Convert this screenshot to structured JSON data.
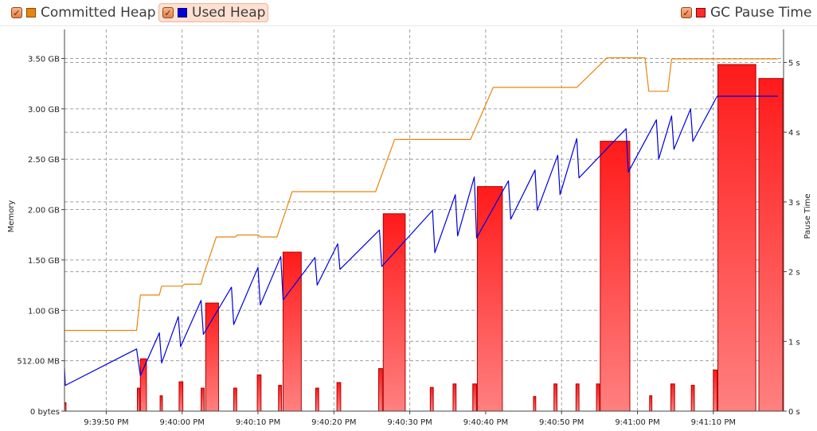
{
  "legend": {
    "committed_label": "Committed Heap",
    "used_label": "Used Heap",
    "gc_label": "GC Pause Time",
    "committed_color": "#e8850c",
    "used_color": "#0000dd",
    "gc_color": "#ff2a2a",
    "checkbox_glyph": "✓"
  },
  "chart_data": {
    "type": "line",
    "ylabel": "Memory",
    "y2label": "Pause Time",
    "grid": true,
    "legend_placement": "top",
    "x_range": [
      0,
      94
    ],
    "y_range_mb": [
      0,
      3584
    ],
    "y2_range_s": [
      0,
      5
    ],
    "x_ticks": [
      {
        "t": 5.5,
        "label": "9:39:50 PM"
      },
      {
        "t": 15.5,
        "label": "9:40:00 PM"
      },
      {
        "t": 25.5,
        "label": "9:40:10 PM"
      },
      {
        "t": 35.5,
        "label": "9:40:20 PM"
      },
      {
        "t": 45.5,
        "label": "9:40:30 PM"
      },
      {
        "t": 55.5,
        "label": "9:40:40 PM"
      },
      {
        "t": 65.5,
        "label": "9:40:50 PM"
      },
      {
        "t": 75.5,
        "label": "9:41:00 PM"
      },
      {
        "t": 85.5,
        "label": "9:41:10 PM"
      }
    ],
    "y_ticks": [
      {
        "v": 0,
        "label": "0 bytes"
      },
      {
        "v": 512,
        "label": "512.00 MB"
      },
      {
        "v": 1024,
        "label": "1.00 GB"
      },
      {
        "v": 1536,
        "label": "1.50 GB"
      },
      {
        "v": 2048,
        "label": "2.00 GB"
      },
      {
        "v": 2560,
        "label": "2.50 GB"
      },
      {
        "v": 3072,
        "label": "3.00 GB"
      },
      {
        "v": 3584,
        "label": "3.50 GB"
      }
    ],
    "y2_ticks": [
      {
        "v": 0,
        "label": "0 s"
      },
      {
        "v": 1,
        "label": "1 s"
      },
      {
        "v": 2,
        "label": "2 s"
      },
      {
        "v": 3,
        "label": "3 s"
      },
      {
        "v": 4,
        "label": "4 s"
      },
      {
        "v": 5,
        "label": "5 s"
      }
    ],
    "series": [
      {
        "name": "Committed Heap",
        "points": [
          [
            0,
            820
          ],
          [
            9.5,
            820
          ],
          [
            10,
            1180
          ],
          [
            12.5,
            1180
          ],
          [
            12.8,
            1270
          ],
          [
            15.5,
            1270
          ],
          [
            15.8,
            1290
          ],
          [
            18,
            1290
          ],
          [
            18.3,
            1380
          ],
          [
            20,
            1770
          ],
          [
            22.5,
            1770
          ],
          [
            22.8,
            1790
          ],
          [
            25.5,
            1790
          ],
          [
            25.8,
            1770
          ],
          [
            28,
            1770
          ],
          [
            30,
            2230
          ],
          [
            41,
            2230
          ],
          [
            43.5,
            2760
          ],
          [
            53.5,
            2760
          ],
          [
            56.5,
            3290
          ],
          [
            67.5,
            3290
          ],
          [
            71.5,
            3590
          ],
          [
            76.5,
            3590
          ],
          [
            77,
            3250
          ],
          [
            79.5,
            3250
          ],
          [
            80,
            3580
          ],
          [
            94,
            3580
          ]
        ]
      },
      {
        "name": "Used Heap",
        "points": [
          [
            0,
            440
          ],
          [
            0.1,
            262
          ],
          [
            9.5,
            632
          ],
          [
            10,
            360
          ],
          [
            12.5,
            795
          ],
          [
            12.8,
            490
          ],
          [
            15,
            960
          ],
          [
            15.3,
            655
          ],
          [
            18,
            1125
          ],
          [
            18.3,
            780
          ],
          [
            22,
            1260
          ],
          [
            22.3,
            880
          ],
          [
            25.5,
            1460
          ],
          [
            25.8,
            1080
          ],
          [
            28.5,
            1570
          ],
          [
            28.8,
            1130
          ],
          [
            33,
            1560
          ],
          [
            33.3,
            1280
          ],
          [
            36,
            1700
          ],
          [
            36.3,
            1440
          ],
          [
            41.5,
            1840
          ],
          [
            41.8,
            1470
          ],
          [
            48.5,
            2040
          ],
          [
            48.8,
            1610
          ],
          [
            51.5,
            2200
          ],
          [
            51.8,
            1780
          ],
          [
            54,
            2380
          ],
          [
            54.3,
            1760
          ],
          [
            58.5,
            2340
          ],
          [
            58.8,
            1950
          ],
          [
            62,
            2450
          ],
          [
            62.3,
            2040
          ],
          [
            65,
            2600
          ],
          [
            65.3,
            2200
          ],
          [
            67.5,
            2770
          ],
          [
            67.8,
            2370
          ],
          [
            74,
            2870
          ],
          [
            74.3,
            2430
          ],
          [
            78,
            2960
          ],
          [
            78.3,
            2560
          ],
          [
            80,
            3000
          ],
          [
            80.3,
            2660
          ],
          [
            82.5,
            3070
          ],
          [
            82.8,
            2740
          ],
          [
            86,
            3200
          ],
          [
            94,
            3200
          ]
        ]
      }
    ],
    "gc_pause_bars_s": [
      {
        "t0": 0,
        "t1": 0.2,
        "v": 0.12
      },
      {
        "t0": 9.6,
        "t1": 9.9,
        "v": 0.33
      },
      {
        "t0": 10,
        "t1": 10.8,
        "v": 0.75
      },
      {
        "t0": 12.6,
        "t1": 12.9,
        "v": 0.22
      },
      {
        "t0": 15.1,
        "t1": 15.6,
        "v": 0.42
      },
      {
        "t0": 18,
        "t1": 18.4,
        "v": 0.33
      },
      {
        "t0": 18.6,
        "t1": 20.3,
        "v": 1.55
      },
      {
        "t0": 22.3,
        "t1": 22.7,
        "v": 0.33
      },
      {
        "t0": 25.4,
        "t1": 25.9,
        "v": 0.52
      },
      {
        "t0": 28.2,
        "t1": 28.6,
        "v": 0.37
      },
      {
        "t0": 28.8,
        "t1": 31.2,
        "v": 2.28
      },
      {
        "t0": 33.1,
        "t1": 33.5,
        "v": 0.33
      },
      {
        "t0": 35.9,
        "t1": 36.4,
        "v": 0.41
      },
      {
        "t0": 41.4,
        "t1": 41.9,
        "v": 0.61
      },
      {
        "t0": 42,
        "t1": 44.9,
        "v": 2.83
      },
      {
        "t0": 48.2,
        "t1": 48.6,
        "v": 0.34
      },
      {
        "t0": 51.2,
        "t1": 51.6,
        "v": 0.39
      },
      {
        "t0": 53.8,
        "t1": 54.3,
        "v": 0.39
      },
      {
        "t0": 54.4,
        "t1": 57.7,
        "v": 3.22
      },
      {
        "t0": 61.8,
        "t1": 62.1,
        "v": 0.21
      },
      {
        "t0": 64.5,
        "t1": 64.9,
        "v": 0.39
      },
      {
        "t0": 67.4,
        "t1": 67.8,
        "v": 0.39
      },
      {
        "t0": 70.1,
        "t1": 70.5,
        "v": 0.39
      },
      {
        "t0": 70.6,
        "t1": 74.5,
        "v": 3.87
      },
      {
        "t0": 77.1,
        "t1": 77.4,
        "v": 0.22
      },
      {
        "t0": 79.9,
        "t1": 80.4,
        "v": 0.39
      },
      {
        "t0": 82.6,
        "t1": 83,
        "v": 0.37
      },
      {
        "t0": 85.5,
        "t1": 86,
        "v": 0.59
      },
      {
        "t0": 86.1,
        "t1": 91.1,
        "v": 4.97
      },
      {
        "t0": 91.5,
        "t1": 96.2,
        "v": 4.77
      }
    ]
  }
}
